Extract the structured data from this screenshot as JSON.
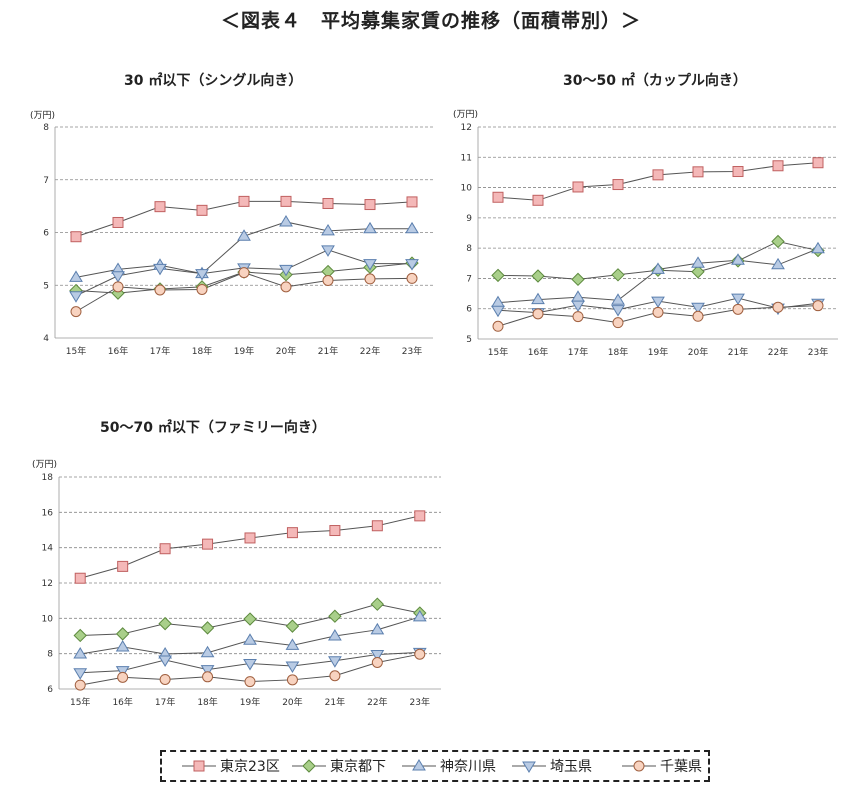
{
  "title": "＜図表４　平均募集家賃の推移（面積帯別）＞",
  "colors": {
    "grid": "#888888",
    "axis": "#999999",
    "line": "#555555"
  },
  "series_styles": [
    {
      "name": "東京23区",
      "marker": "square",
      "fill": "#f4b8b8",
      "stroke": "#c06060"
    },
    {
      "name": "東京都下",
      "marker": "diamond",
      "fill": "#a9cf8a",
      "stroke": "#5d8a3e"
    },
    {
      "name": "神奈川県",
      "marker": "triangle-up",
      "fill": "#b9cbe4",
      "stroke": "#5b7fae"
    },
    {
      "name": "埼玉県",
      "marker": "triangle-down",
      "fill": "#b9cbe4",
      "stroke": "#5b7fae"
    },
    {
      "name": "千葉県",
      "marker": "circle",
      "fill": "#f8d3c0",
      "stroke": "#a06040"
    }
  ],
  "legend": {
    "items": [
      "東京23区",
      "東京都下",
      "神奈川県",
      "埼玉県",
      "千葉県"
    ]
  },
  "chart_data": [
    {
      "type": "line",
      "title": "30 ㎡以下（シングル向き）",
      "unit": "(万円)",
      "categories": [
        "15年",
        "16年",
        "17年",
        "18年",
        "19年",
        "20年",
        "21年",
        "22年",
        "23年"
      ],
      "ylim": [
        4,
        8
      ],
      "yticks": [
        4,
        5,
        6,
        7,
        8
      ],
      "grid": true,
      "series": [
        {
          "name": "東京23区",
          "values": [
            5.92,
            6.19,
            6.49,
            6.42,
            6.59,
            6.59,
            6.55,
            6.53,
            6.58
          ]
        },
        {
          "name": "東京都下",
          "values": [
            4.9,
            4.85,
            4.93,
            4.97,
            5.25,
            5.2,
            5.26,
            5.34,
            5.42
          ]
        },
        {
          "name": "神奈川県",
          "values": [
            5.15,
            5.3,
            5.38,
            5.22,
            5.93,
            6.2,
            6.03,
            6.07,
            6.07
          ]
        },
        {
          "name": "埼玉県",
          "values": [
            4.8,
            5.18,
            5.32,
            5.22,
            5.33,
            5.3,
            5.67,
            5.41,
            5.41
          ]
        },
        {
          "name": "千葉県",
          "values": [
            4.5,
            4.97,
            4.91,
            4.92,
            5.24,
            4.97,
            5.09,
            5.12,
            5.13
          ]
        }
      ]
    },
    {
      "type": "line",
      "title": "30～50 ㎡（カップル向き）",
      "unit": "(万円)",
      "categories": [
        "15年",
        "16年",
        "17年",
        "18年",
        "19年",
        "20年",
        "21年",
        "22年",
        "23年"
      ],
      "ylim": [
        5,
        12
      ],
      "yticks": [
        5,
        6,
        7,
        8,
        9,
        10,
        11,
        12
      ],
      "grid": true,
      "series": [
        {
          "name": "東京23区",
          "values": [
            9.68,
            9.58,
            10.02,
            10.1,
            10.42,
            10.52,
            10.53,
            10.72,
            10.82
          ]
        },
        {
          "name": "東京都下",
          "values": [
            7.1,
            7.08,
            6.97,
            7.12,
            7.27,
            7.22,
            7.58,
            8.22,
            7.92
          ]
        },
        {
          "name": "神奈川県",
          "values": [
            6.2,
            6.3,
            6.38,
            6.28,
            7.3,
            7.5,
            7.6,
            7.45,
            7.98
          ]
        },
        {
          "name": "埼玉県",
          "values": [
            5.95,
            5.87,
            6.12,
            5.97,
            6.25,
            6.05,
            6.35,
            6.02,
            6.18
          ]
        },
        {
          "name": "千葉県",
          "values": [
            5.42,
            5.83,
            5.74,
            5.54,
            5.88,
            5.75,
            5.98,
            6.05,
            6.1
          ]
        }
      ]
    },
    {
      "type": "line",
      "title": "50～70 ㎡以下（ファミリー向き）",
      "unit": "(万円)",
      "categories": [
        "15年",
        "16年",
        "17年",
        "18年",
        "19年",
        "20年",
        "21年",
        "22年",
        "23年"
      ],
      "ylim": [
        6,
        18
      ],
      "yticks": [
        6,
        8,
        10,
        12,
        14,
        16,
        18
      ],
      "grid": true,
      "series": [
        {
          "name": "東京23区",
          "values": [
            12.27,
            12.94,
            13.94,
            14.2,
            14.55,
            14.85,
            14.97,
            15.24,
            15.8
          ]
        },
        {
          "name": "東京都下",
          "values": [
            9.03,
            9.12,
            9.7,
            9.46,
            9.96,
            9.56,
            10.12,
            10.8,
            10.3
          ]
        },
        {
          "name": "神奈川県",
          "values": [
            7.98,
            8.38,
            7.98,
            8.05,
            8.76,
            8.47,
            9.0,
            9.35,
            10.08
          ]
        },
        {
          "name": "埼玉県",
          "values": [
            6.92,
            7.04,
            7.64,
            7.1,
            7.44,
            7.3,
            7.6,
            7.95,
            8.07
          ]
        },
        {
          "name": "千葉県",
          "values": [
            6.22,
            6.66,
            6.54,
            6.69,
            6.42,
            6.52,
            6.75,
            7.5,
            7.97
          ]
        }
      ]
    }
  ]
}
